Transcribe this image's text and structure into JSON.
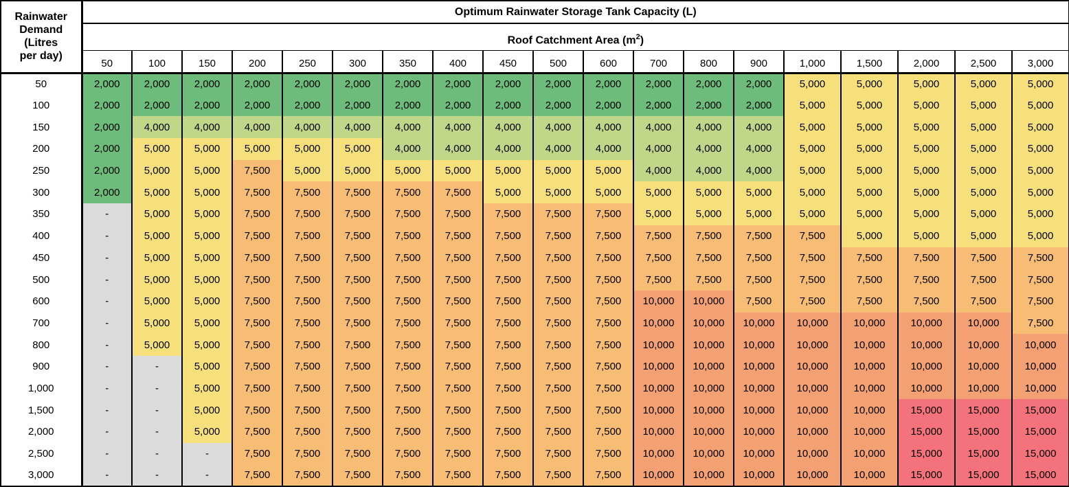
{
  "chart_data": {
    "type": "heatmap",
    "title": "Optimum Rainwater Storage Tank Capacity (L)",
    "x_axis": {
      "label_prefix": "Roof Catchment Area (m",
      "label_sup": "2",
      "label_suffix": ")"
    },
    "y_axis_label_lines": [
      "Rainwater",
      "Demand",
      "(Litres",
      "per day)"
    ],
    "columns": [
      "50",
      "100",
      "150",
      "200",
      "250",
      "300",
      "350",
      "400",
      "450",
      "500",
      "600",
      "700",
      "800",
      "900",
      "1,000",
      "1,500",
      "2,000",
      "2,500",
      "3,000"
    ],
    "no_data_marker": "-",
    "value_colors": {
      "2,000": "#6DBC7B",
      "4,000": "#C0D689",
      "5,000": "#F6E07C",
      "7,500": "#F7BD74",
      "10,000": "#F3A173",
      "15,000": "#F4727B",
      "-": "#DBDBDB"
    },
    "rows": [
      {
        "label": "50",
        "values": [
          "2,000",
          "2,000",
          "2,000",
          "2,000",
          "2,000",
          "2,000",
          "2,000",
          "2,000",
          "2,000",
          "2,000",
          "2,000",
          "2,000",
          "2,000",
          "2,000",
          "5,000",
          "5,000",
          "5,000",
          "5,000",
          "5,000"
        ]
      },
      {
        "label": "100",
        "values": [
          "2,000",
          "2,000",
          "2,000",
          "2,000",
          "2,000",
          "2,000",
          "2,000",
          "2,000",
          "2,000",
          "2,000",
          "2,000",
          "2,000",
          "2,000",
          "2,000",
          "5,000",
          "5,000",
          "5,000",
          "5,000",
          "5,000"
        ]
      },
      {
        "label": "150",
        "values": [
          "2,000",
          "4,000",
          "4,000",
          "4,000",
          "4,000",
          "4,000",
          "4,000",
          "4,000",
          "4,000",
          "4,000",
          "4,000",
          "4,000",
          "4,000",
          "4,000",
          "5,000",
          "5,000",
          "5,000",
          "5,000",
          "5,000"
        ]
      },
      {
        "label": "200",
        "values": [
          "2,000",
          "5,000",
          "5,000",
          "5,000",
          "5,000",
          "5,000",
          "4,000",
          "4,000",
          "4,000",
          "4,000",
          "4,000",
          "4,000",
          "4,000",
          "4,000",
          "5,000",
          "5,000",
          "5,000",
          "5,000",
          "5,000"
        ]
      },
      {
        "label": "250",
        "values": [
          "2,000",
          "5,000",
          "5,000",
          "7,500",
          "5,000",
          "5,000",
          "5,000",
          "5,000",
          "5,000",
          "5,000",
          "5,000",
          "4,000",
          "4,000",
          "4,000",
          "5,000",
          "5,000",
          "5,000",
          "5,000",
          "5,000"
        ]
      },
      {
        "label": "300",
        "values": [
          "2,000",
          "5,000",
          "5,000",
          "7,500",
          "7,500",
          "7,500",
          "7,500",
          "7,500",
          "5,000",
          "5,000",
          "5,000",
          "5,000",
          "5,000",
          "5,000",
          "5,000",
          "5,000",
          "5,000",
          "5,000",
          "5,000"
        ]
      },
      {
        "label": "350",
        "values": [
          "-",
          "5,000",
          "5,000",
          "7,500",
          "7,500",
          "7,500",
          "7,500",
          "7,500",
          "7,500",
          "7,500",
          "7,500",
          "5,000",
          "5,000",
          "5,000",
          "5,000",
          "5,000",
          "5,000",
          "5,000",
          "5,000"
        ]
      },
      {
        "label": "400",
        "values": [
          "-",
          "5,000",
          "5,000",
          "7,500",
          "7,500",
          "7,500",
          "7,500",
          "7,500",
          "7,500",
          "7,500",
          "7,500",
          "7,500",
          "7,500",
          "7,500",
          "7,500",
          "5,000",
          "5,000",
          "5,000",
          "5,000"
        ]
      },
      {
        "label": "450",
        "values": [
          "-",
          "5,000",
          "5,000",
          "7,500",
          "7,500",
          "7,500",
          "7,500",
          "7,500",
          "7,500",
          "7,500",
          "7,500",
          "7,500",
          "7,500",
          "7,500",
          "7,500",
          "7,500",
          "7,500",
          "7,500",
          "7,500"
        ]
      },
      {
        "label": "500",
        "values": [
          "-",
          "5,000",
          "5,000",
          "7,500",
          "7,500",
          "7,500",
          "7,500",
          "7,500",
          "7,500",
          "7,500",
          "7,500",
          "7,500",
          "7,500",
          "7,500",
          "7,500",
          "7,500",
          "7,500",
          "7,500",
          "7,500"
        ]
      },
      {
        "label": "600",
        "values": [
          "-",
          "5,000",
          "5,000",
          "7,500",
          "7,500",
          "7,500",
          "7,500",
          "7,500",
          "7,500",
          "7,500",
          "7,500",
          "10,000",
          "10,000",
          "7,500",
          "7,500",
          "7,500",
          "7,500",
          "7,500",
          "7,500"
        ]
      },
      {
        "label": "700",
        "values": [
          "-",
          "5,000",
          "5,000",
          "7,500",
          "7,500",
          "7,500",
          "7,500",
          "7,500",
          "7,500",
          "7,500",
          "7,500",
          "10,000",
          "10,000",
          "10,000",
          "10,000",
          "10,000",
          "10,000",
          "10,000",
          "7,500"
        ]
      },
      {
        "label": "800",
        "values": [
          "-",
          "5,000",
          "5,000",
          "7,500",
          "7,500",
          "7,500",
          "7,500",
          "7,500",
          "7,500",
          "7,500",
          "7,500",
          "10,000",
          "10,000",
          "10,000",
          "10,000",
          "10,000",
          "10,000",
          "10,000",
          "10,000"
        ]
      },
      {
        "label": "900",
        "values": [
          "-",
          "-",
          "5,000",
          "7,500",
          "7,500",
          "7,500",
          "7,500",
          "7,500",
          "7,500",
          "7,500",
          "7,500",
          "10,000",
          "10,000",
          "10,000",
          "10,000",
          "10,000",
          "10,000",
          "10,000",
          "10,000"
        ]
      },
      {
        "label": "1,000",
        "values": [
          "-",
          "-",
          "5,000",
          "7,500",
          "7,500",
          "7,500",
          "7,500",
          "7,500",
          "7,500",
          "7,500",
          "7,500",
          "10,000",
          "10,000",
          "10,000",
          "10,000",
          "10,000",
          "10,000",
          "10,000",
          "10,000"
        ]
      },
      {
        "label": "1,500",
        "values": [
          "-",
          "-",
          "5,000",
          "7,500",
          "7,500",
          "7,500",
          "7,500",
          "7,500",
          "7,500",
          "7,500",
          "7,500",
          "10,000",
          "10,000",
          "10,000",
          "10,000",
          "10,000",
          "15,000",
          "15,000",
          "15,000"
        ]
      },
      {
        "label": "2,000",
        "values": [
          "-",
          "-",
          "5,000",
          "7,500",
          "7,500",
          "7,500",
          "7,500",
          "7,500",
          "7,500",
          "7,500",
          "7,500",
          "10,000",
          "10,000",
          "10,000",
          "10,000",
          "10,000",
          "15,000",
          "15,000",
          "15,000"
        ]
      },
      {
        "label": "2,500",
        "values": [
          "-",
          "-",
          "-",
          "7,500",
          "7,500",
          "7,500",
          "7,500",
          "7,500",
          "7,500",
          "7,500",
          "7,500",
          "10,000",
          "10,000",
          "10,000",
          "10,000",
          "10,000",
          "15,000",
          "15,000",
          "15,000"
        ]
      },
      {
        "label": "3,000",
        "values": [
          "-",
          "-",
          "-",
          "7,500",
          "7,500",
          "7,500",
          "7,500",
          "7,500",
          "7,500",
          "7,500",
          "7,500",
          "10,000",
          "10,000",
          "10,000",
          "10,000",
          "10,000",
          "15,000",
          "15,000",
          "15,000"
        ]
      }
    ]
  }
}
